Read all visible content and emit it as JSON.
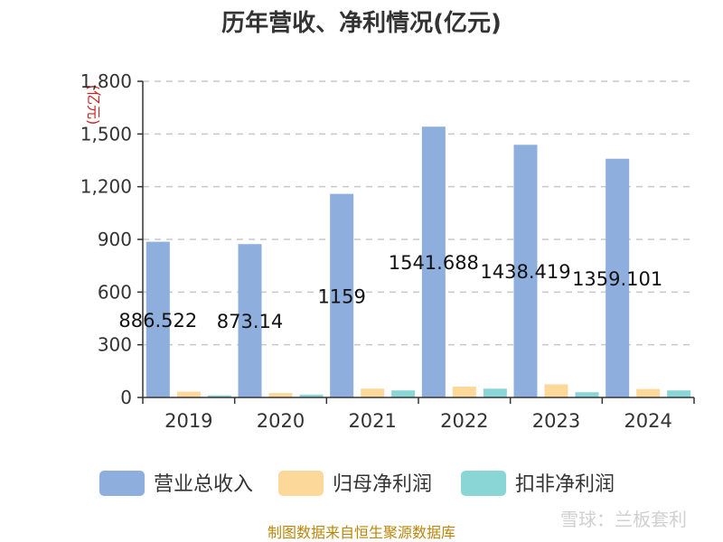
{
  "chart_data": {
    "type": "bar",
    "title": "历年营收、净利情况(亿元)",
    "ylabel": "(亿元)",
    "ylim": [
      0,
      1800
    ],
    "yticks": [
      0,
      300,
      600,
      900,
      1200,
      1500,
      1800
    ],
    "ytick_labels": [
      "0",
      "300",
      "600",
      "900",
      "1,200",
      "1,500",
      "1,800"
    ],
    "categories": [
      "2019",
      "2020",
      "2021",
      "2022",
      "2023",
      "2024"
    ],
    "series": [
      {
        "name": "营业总收入",
        "color": "#8eaedd",
        "values": [
          886.522,
          873.14,
          1159,
          1541.688,
          1438.419,
          1359.101
        ],
        "labels": [
          "886.522",
          "873.14",
          "1159",
          "1541.688",
          "1438.419",
          "1359.101"
        ]
      },
      {
        "name": "归母净利润",
        "color": "#fcd99a",
        "values": [
          33,
          25,
          50,
          62,
          75,
          48
        ]
      },
      {
        "name": "扣非净利润",
        "color": "#8ad6d6",
        "values": [
          12,
          16,
          40,
          50,
          30,
          40
        ]
      }
    ],
    "grid": true,
    "legend": "bottom"
  },
  "source": "制图数据来自恒生聚源数据库",
  "watermark": "雪球：兰板套利"
}
